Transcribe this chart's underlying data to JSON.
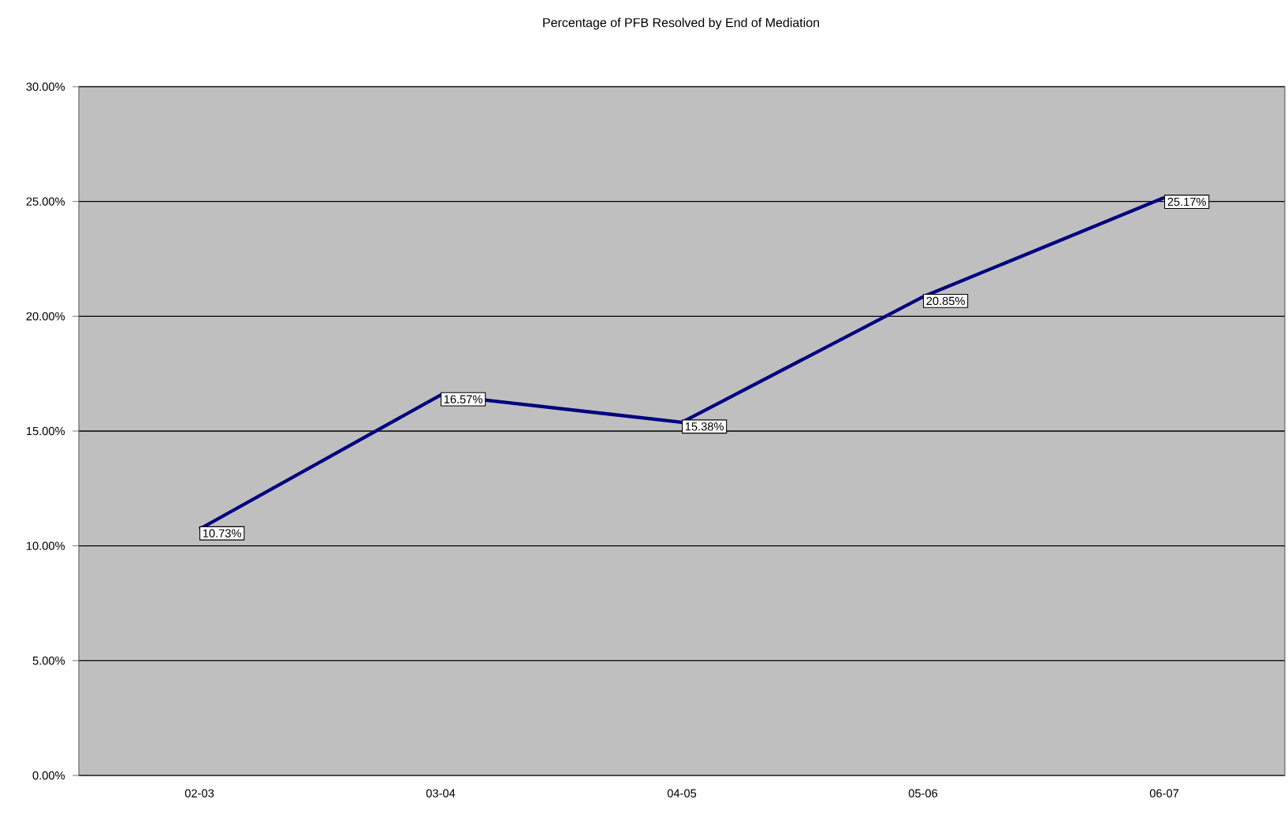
{
  "chart_data": {
    "type": "line",
    "title": "Percentage of PFB Resolved by End of Mediation",
    "categories": [
      "02-03",
      "03-04",
      "04-05",
      "05-06",
      "06-07"
    ],
    "values": [
      10.73,
      16.57,
      15.38,
      20.85,
      25.17
    ],
    "value_labels": [
      "10.73%",
      "16.57%",
      "15.38%",
      "20.85%",
      "25.17%"
    ],
    "color": "#000080",
    "ylim": [
      0,
      30
    ],
    "yticks": [
      {
        "value": 0,
        "label": "0.00%"
      },
      {
        "value": 5,
        "label": "5.00%"
      },
      {
        "value": 10,
        "label": "10.00%"
      },
      {
        "value": 15,
        "label": "15.00%"
      },
      {
        "value": 20,
        "label": "20.00%"
      },
      {
        "value": 25,
        "label": "25.00%"
      },
      {
        "value": 30,
        "label": "30.00%"
      }
    ],
    "grid": "y"
  }
}
